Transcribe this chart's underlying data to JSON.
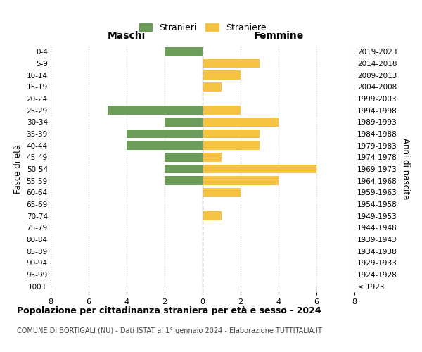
{
  "age_groups": [
    "100+",
    "95-99",
    "90-94",
    "85-89",
    "80-84",
    "75-79",
    "70-74",
    "65-69",
    "60-64",
    "55-59",
    "50-54",
    "45-49",
    "40-44",
    "35-39",
    "30-34",
    "25-29",
    "20-24",
    "15-19",
    "10-14",
    "5-9",
    "0-4"
  ],
  "birth_years": [
    "≤ 1923",
    "1924-1928",
    "1929-1933",
    "1934-1938",
    "1939-1943",
    "1944-1948",
    "1949-1953",
    "1954-1958",
    "1959-1963",
    "1964-1968",
    "1969-1973",
    "1974-1978",
    "1979-1983",
    "1984-1988",
    "1989-1993",
    "1994-1998",
    "1999-2003",
    "2004-2008",
    "2009-2013",
    "2014-2018",
    "2019-2023"
  ],
  "males": [
    0,
    0,
    0,
    0,
    0,
    0,
    0,
    0,
    0,
    2,
    2,
    2,
    4,
    4,
    2,
    5,
    0,
    0,
    0,
    0,
    2
  ],
  "females": [
    0,
    0,
    0,
    0,
    0,
    0,
    1,
    0,
    2,
    4,
    6,
    1,
    3,
    3,
    4,
    2,
    0,
    1,
    2,
    3,
    0
  ],
  "male_color": "#6d9b5a",
  "female_color": "#f5c242",
  "xlim": 8,
  "xlabel_left": "Maschi",
  "xlabel_right": "Femmine",
  "ylabel_left": "Fasce di età",
  "ylabel_right": "Anni di nascita",
  "legend_male": "Stranieri",
  "legend_female": "Straniere",
  "title": "Popolazione per cittadinanza straniera per età e sesso - 2024",
  "subtitle": "COMUNE DI BORTIGALI (NU) - Dati ISTAT al 1° gennaio 2024 - Elaborazione TUTTITALIA.IT",
  "bg_color": "#ffffff",
  "grid_color": "#cccccc",
  "bar_height": 0.75
}
